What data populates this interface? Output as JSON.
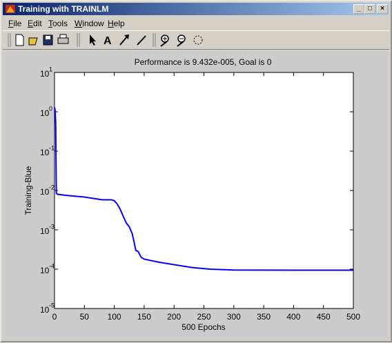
{
  "window": {
    "title": "Training with TRAINLM",
    "menu": [
      "File",
      "Edit",
      "Tools",
      "Window",
      "Help"
    ]
  },
  "chart_data": {
    "type": "line",
    "title": "Performance is 9.432e-005, Goal is 0",
    "x_label": "500 Epochs",
    "y_label": "Training-Blue",
    "y_scale": "log",
    "grid": false,
    "xlim": [
      0,
      500
    ],
    "xticks": [
      0,
      50,
      100,
      150,
      200,
      250,
      300,
      350,
      400,
      450,
      500
    ],
    "ylim": [
      1e-05,
      10
    ],
    "yticks": [
      {
        "value": 1e-05,
        "label": "10",
        "exponent": "-5"
      },
      {
        "value": 0.0001,
        "label": "10",
        "exponent": "-4"
      },
      {
        "value": 0.001,
        "label": "10",
        "exponent": "-3"
      },
      {
        "value": 0.01,
        "label": "10",
        "exponent": "-2"
      },
      {
        "value": 0.1,
        "label": "10",
        "exponent": "-1"
      },
      {
        "value": 1,
        "label": "10",
        "exponent": "0"
      },
      {
        "value": 10,
        "label": "10",
        "exponent": "1"
      }
    ],
    "x": [
      0,
      1,
      2,
      3,
      5,
      20,
      50,
      80,
      95,
      100,
      105,
      110,
      115,
      120,
      125,
      130,
      133,
      136,
      140,
      145,
      150,
      175,
      200,
      230,
      260,
      300,
      400,
      500
    ],
    "series": [
      {
        "name": "Training",
        "color": "#0000ff",
        "values": [
          1.3,
          1.1,
          0.5,
          0.0085,
          0.008,
          0.0075,
          0.0068,
          0.0058,
          0.0058,
          0.0055,
          0.0045,
          0.0033,
          0.0022,
          0.0015,
          0.0012,
          0.0008,
          0.0005,
          0.0003,
          0.00028,
          0.0002,
          0.00018,
          0.00015,
          0.00013,
          0.00011,
          0.0001,
          9.5e-05,
          9.4e-05,
          9.432e-05
        ]
      }
    ]
  }
}
